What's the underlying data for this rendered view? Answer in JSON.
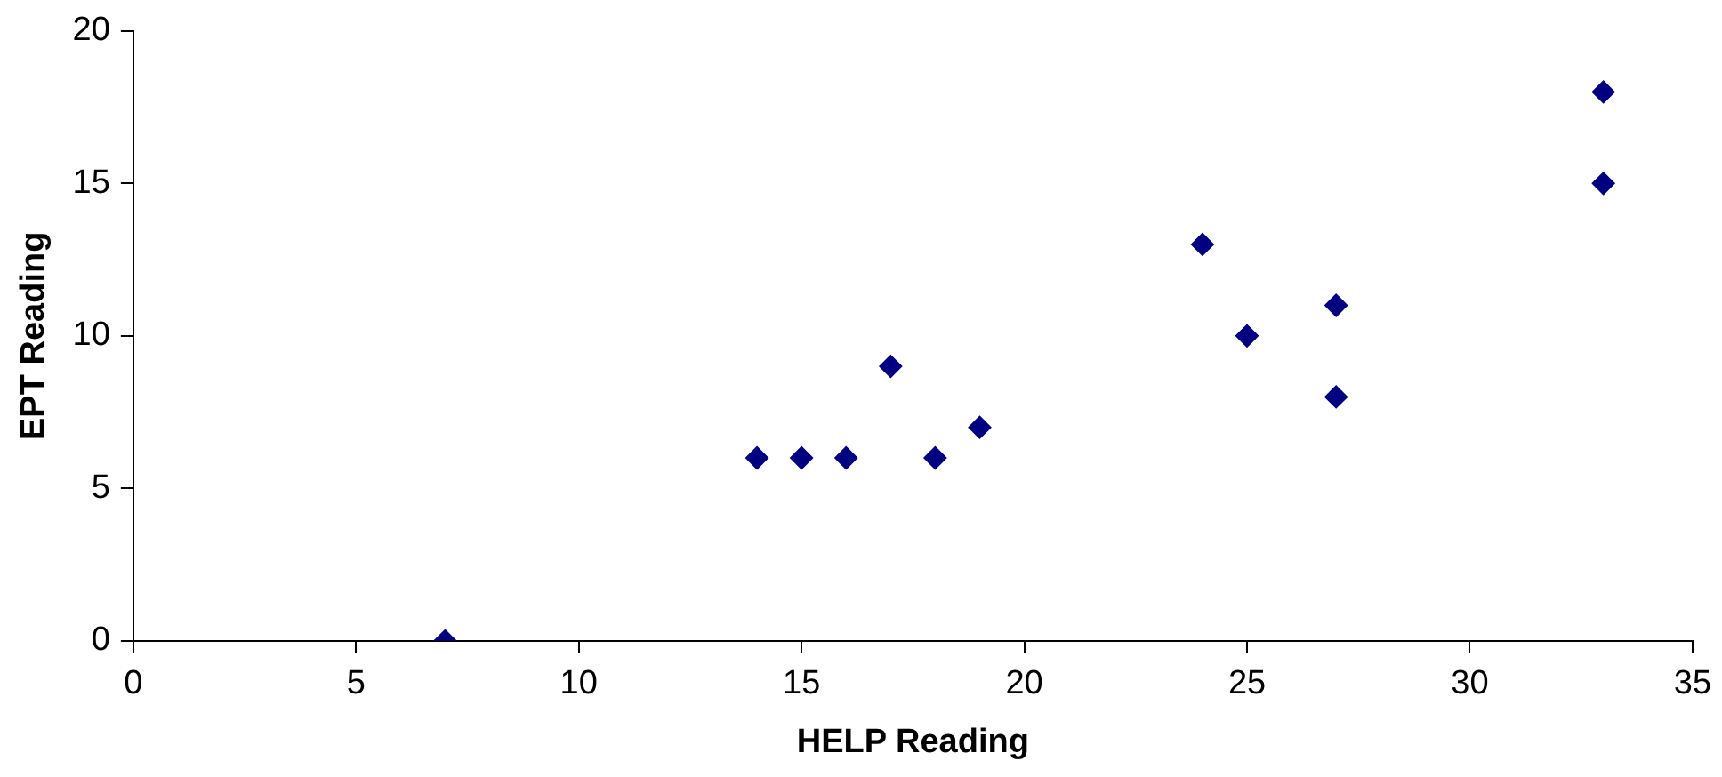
{
  "chart_data": {
    "type": "scatter",
    "xlabel": "HELP Reading",
    "ylabel": "EPT Reading",
    "x": [
      7,
      14,
      15,
      16,
      17,
      18,
      19,
      24,
      25,
      27,
      27,
      33,
      33
    ],
    "values": [
      0,
      6,
      6,
      6,
      9,
      6,
      7,
      13,
      10,
      11,
      8,
      18,
      15
    ],
    "color": "#000080",
    "marker": "diamond",
    "xlim": [
      0,
      35
    ],
    "xticks": [
      0,
      5,
      10,
      15,
      20,
      25,
      30,
      35
    ],
    "ylim": [
      0,
      20
    ],
    "yticks": [
      0,
      5,
      10,
      15,
      20
    ]
  }
}
